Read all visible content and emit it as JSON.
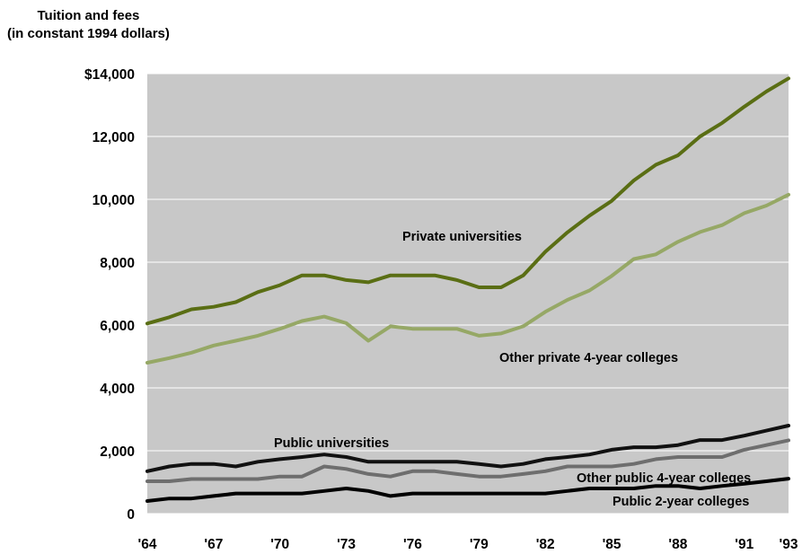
{
  "chart_data": {
    "type": "line",
    "ylabel_line1": "Tuition and fees",
    "ylabel_line2": "(in constant 1994 dollars)",
    "ylim": [
      0,
      14000
    ],
    "xlim": [
      1964,
      1993
    ],
    "x_tick_labels": [
      "'64",
      "'67",
      "'70",
      "'73",
      "'76",
      "'79",
      "'82",
      "'85",
      "'88",
      "'91",
      "'93"
    ],
    "x_tick_years": [
      1964,
      1967,
      1970,
      1973,
      1976,
      1979,
      1982,
      1985,
      1988,
      1991,
      1993
    ],
    "y_tick_labels": [
      "0",
      "2,000",
      "4,000",
      "6,000",
      "8,000",
      "10,000",
      "12,000",
      "$14,000"
    ],
    "y_tick_values": [
      0,
      2000,
      4000,
      6000,
      8000,
      10000,
      12000,
      14000
    ],
    "grid": true,
    "plot_background": "#c8c8c8",
    "x": [
      1964,
      1965,
      1966,
      1967,
      1968,
      1969,
      1970,
      1971,
      1972,
      1973,
      1974,
      1975,
      1976,
      1977,
      1978,
      1979,
      1980,
      1981,
      1982,
      1983,
      1984,
      1985,
      1986,
      1987,
      1988,
      1989,
      1990,
      1991,
      1992,
      1993
    ],
    "series": [
      {
        "name": "Private universities",
        "color": "#5a6e14",
        "values": [
          6050,
          6250,
          6500,
          6580,
          6730,
          7050,
          7270,
          7580,
          7580,
          7430,
          7360,
          7580,
          7580,
          7580,
          7430,
          7200,
          7200,
          7580,
          8330,
          8950,
          9480,
          9950,
          10600,
          11100,
          11400,
          12000,
          12430,
          12950,
          13430,
          13850
        ]
      },
      {
        "name": "Other private 4-year colleges",
        "color": "#96a866",
        "values": [
          4800,
          4950,
          5120,
          5350,
          5500,
          5660,
          5880,
          6130,
          6270,
          6060,
          5500,
          5960,
          5880,
          5880,
          5880,
          5660,
          5730,
          5960,
          6420,
          6800,
          7100,
          7560,
          8100,
          8250,
          8650,
          8960,
          9180,
          9560,
          9800,
          10150
        ]
      },
      {
        "name": "Public universities",
        "color": "#111111",
        "values": [
          1350,
          1500,
          1580,
          1580,
          1500,
          1650,
          1730,
          1800,
          1880,
          1800,
          1650,
          1650,
          1650,
          1650,
          1650,
          1580,
          1500,
          1580,
          1730,
          1800,
          1880,
          2030,
          2110,
          2110,
          2180,
          2340,
          2340,
          2480,
          2640,
          2800
        ]
      },
      {
        "name": "Other public 4-year colleges",
        "color": "#6e6e6e",
        "values": [
          1030,
          1030,
          1100,
          1100,
          1100,
          1100,
          1180,
          1180,
          1500,
          1420,
          1260,
          1180,
          1350,
          1350,
          1260,
          1180,
          1180,
          1260,
          1350,
          1500,
          1500,
          1500,
          1580,
          1730,
          1800,
          1800,
          1800,
          2030,
          2180,
          2330
        ]
      },
      {
        "name": "Public 2-year colleges",
        "color": "#000000",
        "values": [
          400,
          480,
          480,
          560,
          640,
          640,
          640,
          640,
          720,
          800,
          720,
          560,
          640,
          640,
          640,
          640,
          640,
          640,
          640,
          720,
          800,
          800,
          800,
          880,
          880,
          800,
          880,
          950,
          1030,
          1110
        ]
      }
    ]
  }
}
